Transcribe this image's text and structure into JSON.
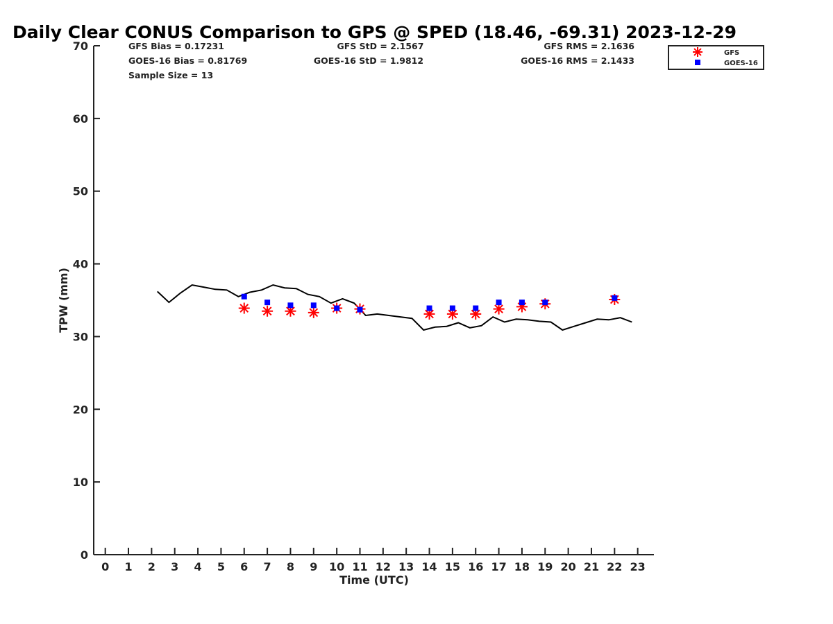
{
  "chart_data": {
    "type": "line",
    "title": "Daily Clear CONUS Comparison to GPS @ SPED (18.46, -69.31) 2023-12-29",
    "xlabel": "Time (UTC)",
    "ylabel": "TPW (mm)",
    "xlim": [
      -0.5,
      23.7
    ],
    "ylim": [
      0,
      70
    ],
    "xticks": [
      "0",
      "1",
      "2",
      "3",
      "4",
      "5",
      "6",
      "7",
      "8",
      "9",
      "10",
      "11",
      "12",
      "13",
      "14",
      "15",
      "16",
      "17",
      "18",
      "19",
      "20",
      "21",
      "22",
      "23"
    ],
    "yticks": [
      "0",
      "10",
      "20",
      "30",
      "40",
      "50",
      "60",
      "70"
    ],
    "grid": false,
    "legend_position": "top-right",
    "stats": {
      "gfs_bias": "GFS Bias = 0.17231",
      "gfs_std": "GFS StD = 2.1567",
      "gfs_rms": "GFS RMS = 2.1636",
      "goes_bias": "GOES-16 Bias = 0.81769",
      "goes_std": "GOES-16 StD = 1.9812",
      "goes_rms": "GOES-16 RMS = 2.1433",
      "sample_size": "Sample Size = 13"
    },
    "series": [
      {
        "kind": "line",
        "color": "#000000",
        "x": [
          2.25,
          2.75,
          3.25,
          3.75,
          4.25,
          4.75,
          5.25,
          5.75,
          6.25,
          6.75,
          7.25,
          7.75,
          8.25,
          8.75,
          9.25,
          9.75,
          10.25,
          10.75,
          11.25,
          11.75,
          12.25,
          12.75,
          13.25,
          13.75,
          14.25,
          14.75,
          15.25,
          15.75,
          16.25,
          16.75,
          17.25,
          17.75,
          18.25,
          18.75,
          19.25,
          19.75,
          20.25,
          20.75,
          21.25,
          21.75,
          22.25,
          22.75
        ],
        "values": [
          36.2,
          34.7,
          36.0,
          37.1,
          36.8,
          36.5,
          36.4,
          35.5,
          36.1,
          36.4,
          37.1,
          36.7,
          36.6,
          35.8,
          35.5,
          34.6,
          35.2,
          34.6,
          32.9,
          33.1,
          32.9,
          32.7,
          32.5,
          30.9,
          31.3,
          31.4,
          31.9,
          31.2,
          31.5,
          32.7,
          32.0,
          32.4,
          32.3,
          32.1,
          32.0,
          30.9,
          31.4,
          31.9,
          32.4,
          32.3,
          32.6,
          32.0
        ]
      },
      {
        "name": "GFS",
        "kind": "scatter",
        "marker": "asterisk",
        "color": "#ff0000",
        "x": [
          6,
          7,
          8,
          9,
          10,
          11,
          14,
          15,
          16,
          17,
          18,
          19,
          22
        ],
        "values": [
          33.9,
          33.5,
          33.5,
          33.3,
          33.9,
          33.8,
          33.1,
          33.1,
          33.1,
          33.8,
          34.1,
          34.5,
          35.1
        ]
      },
      {
        "name": "GOES-16",
        "kind": "scatter",
        "marker": "square",
        "color": "#0000ff",
        "x": [
          6,
          7,
          8,
          9,
          10,
          11,
          14,
          15,
          16,
          17,
          18,
          19,
          22
        ],
        "values": [
          35.5,
          34.7,
          34.3,
          34.3,
          33.9,
          33.7,
          33.9,
          33.9,
          33.9,
          34.7,
          34.7,
          34.7,
          35.3
        ]
      }
    ]
  }
}
